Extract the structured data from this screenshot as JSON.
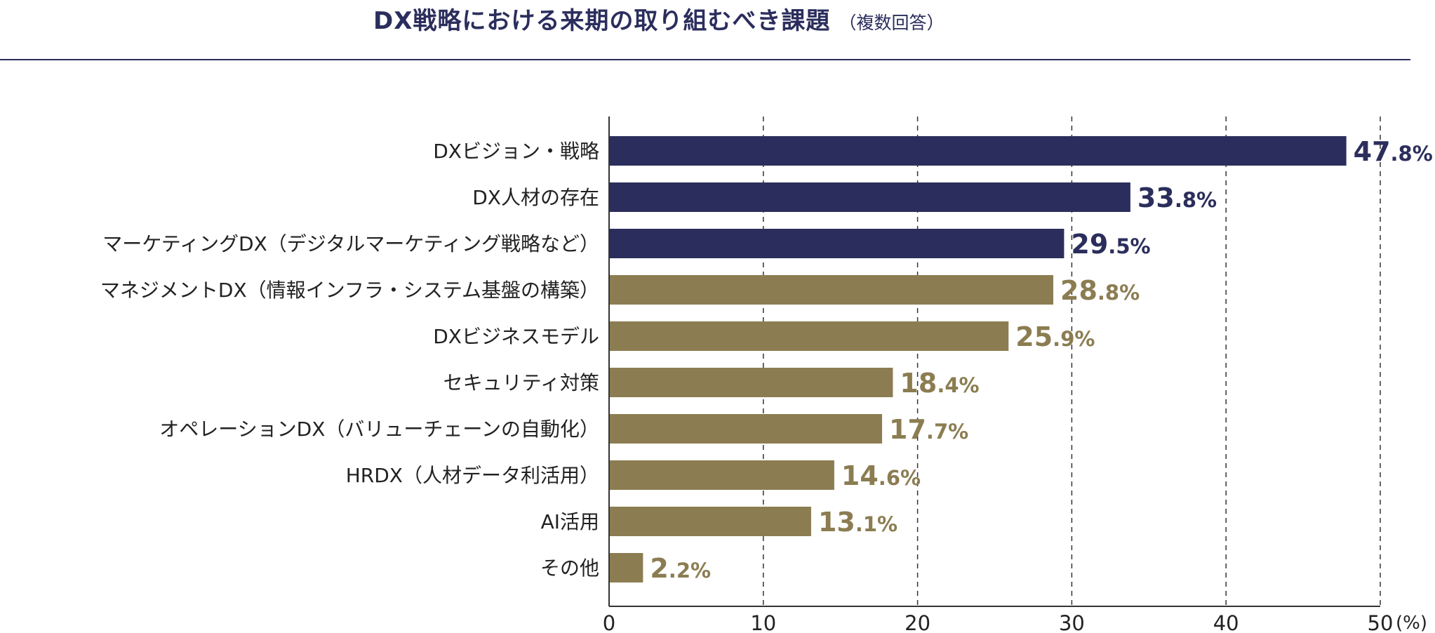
{
  "chart_data": {
    "type": "bar",
    "orientation": "horizontal",
    "title": "DX戦略における来期の取り組むべき課題",
    "subtitle": "（複数回答）",
    "categories": [
      "DXビジョン・戦略",
      "DX人材の存在",
      "マーケティングDX（デジタルマーケティング戦略など）",
      "マネジメントDX（情報インフラ・システム基盤の構築）",
      "DXビジネスモデル",
      "セキュリティ対策",
      "オペレーションDX（バリューチェーンの自動化）",
      "HRDX（人材データ利活用）",
      "AI活用",
      "その他"
    ],
    "values": [
      47.8,
      33.8,
      29.5,
      28.8,
      25.9,
      18.4,
      17.7,
      14.6,
      13.1,
      2.2
    ],
    "value_labels": [
      "47.8%",
      "33.8%",
      "29.5%",
      "28.8%",
      "25.9%",
      "18.4%",
      "17.7%",
      "14.6%",
      "13.1%",
      "2.2%"
    ],
    "highlight_count": 3,
    "colors": {
      "highlight": "#2b2e5c",
      "normal": "#8b7d51",
      "grid": "#333333",
      "text": "#222222"
    },
    "xlim": [
      0,
      50
    ],
    "xticks": [
      0,
      10,
      20,
      30,
      40,
      50
    ],
    "xtick_labels": [
      "0",
      "10",
      "20",
      "30",
      "40",
      "50"
    ],
    "unit_label": "(%)",
    "grid": "vertical-dashed"
  }
}
